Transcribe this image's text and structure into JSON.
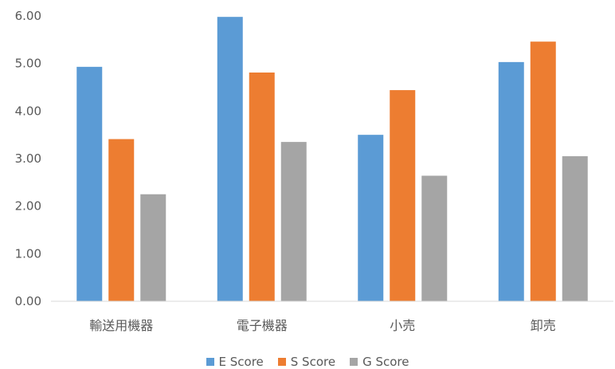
{
  "chart_data": {
    "type": "bar",
    "categories": [
      "輸送用機器",
      "電子機器",
      "小売",
      "卸売"
    ],
    "series": [
      {
        "name": "E Score",
        "color": "#5b9bd5",
        "values": [
          4.93,
          5.98,
          3.5,
          5.03
        ]
      },
      {
        "name": "S Score",
        "color": "#ed7d31",
        "values": [
          3.41,
          4.81,
          4.44,
          5.46
        ]
      },
      {
        "name": "G Score",
        "color": "#a5a5a5",
        "values": [
          2.25,
          3.35,
          2.64,
          3.05
        ]
      }
    ],
    "ylim": [
      0,
      6
    ],
    "yticks": [
      "0.00",
      "1.00",
      "2.00",
      "3.00",
      "4.00",
      "5.00",
      "6.00"
    ],
    "grid": false,
    "legend_position": "bottom"
  }
}
